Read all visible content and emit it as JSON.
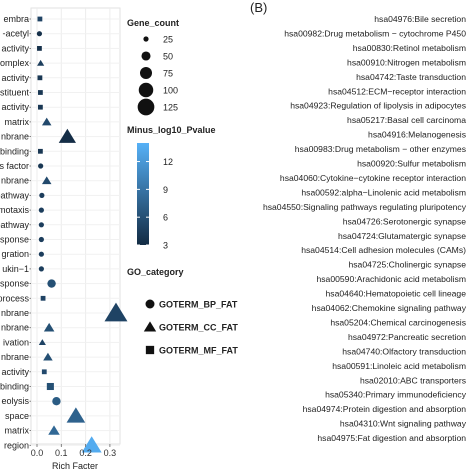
{
  "panel_b_label": "(B)",
  "chart_data": [
    {
      "type": "scatter",
      "xlabel": "Rich Facter",
      "xlim": [
        0,
        0.35
      ],
      "xticks": [
        0.0,
        0.1,
        0.2,
        0.3
      ],
      "xtick_labels": [
        "0.0",
        "0.1",
        "0.2",
        "0.3"
      ],
      "grid": true,
      "categories": [
        "embra",
        "-acetyl",
        "activity",
        "omplex",
        "activity",
        "stituent",
        "activity",
        "matrix",
        "nbrane",
        "binding",
        "s factor",
        "nbrane",
        "pathway",
        "motaxis",
        "pathway",
        "sponse",
        "gration",
        "ukin−1",
        "sponse",
        "process",
        "nbrane",
        "nbrane",
        "ivation",
        "nbrane",
        "activity",
        "binding",
        "eolysis",
        "space",
        "matrix",
        "region"
      ],
      "category_colors": {
        "28": "#e8473f"
      },
      "points": [
        {
          "y": "embra",
          "x": 0.012,
          "size": 25,
          "log_p": 5.0,
          "go": "GOTERM_MF_FAT"
        },
        {
          "y": "-acetyl",
          "x": 0.01,
          "size": 25,
          "log_p": 3.5,
          "go": "GOTERM_BP_FAT"
        },
        {
          "y": "activity",
          "x": 0.01,
          "size": 25,
          "log_p": 3.5,
          "go": "GOTERM_MF_FAT"
        },
        {
          "y": "omplex",
          "x": 0.015,
          "size": 25,
          "log_p": 4.5,
          "go": "GOTERM_CC_FAT"
        },
        {
          "y": "activity",
          "x": 0.012,
          "size": 25,
          "log_p": 4.0,
          "go": "GOTERM_MF_FAT"
        },
        {
          "y": "stituent",
          "x": 0.014,
          "size": 25,
          "log_p": 4.0,
          "go": "GOTERM_MF_FAT"
        },
        {
          "y": "activity",
          "x": 0.014,
          "size": 25,
          "log_p": 4.0,
          "go": "GOTERM_MF_FAT"
        },
        {
          "y": "matrix",
          "x": 0.04,
          "size": 35,
          "log_p": 5.5,
          "go": "GOTERM_CC_FAT"
        },
        {
          "y": "nbrane",
          "x": 0.125,
          "size": 80,
          "log_p": 3.2,
          "go": "GOTERM_CC_FAT"
        },
        {
          "y": "binding",
          "x": 0.014,
          "size": 25,
          "log_p": 4.0,
          "go": "GOTERM_MF_FAT"
        },
        {
          "y": "s factor",
          "x": 0.015,
          "size": 25,
          "log_p": 4.0,
          "go": "GOTERM_BP_FAT"
        },
        {
          "y": "nbrane",
          "x": 0.04,
          "size": 35,
          "log_p": 5.5,
          "go": "GOTERM_CC_FAT"
        },
        {
          "y": "pathway",
          "x": 0.02,
          "size": 25,
          "log_p": 4.5,
          "go": "GOTERM_BP_FAT"
        },
        {
          "y": "motaxis",
          "x": 0.018,
          "size": 25,
          "log_p": 4.5,
          "go": "GOTERM_BP_FAT"
        },
        {
          "y": "pathway",
          "x": 0.018,
          "size": 25,
          "log_p": 4.5,
          "go": "GOTERM_BP_FAT"
        },
        {
          "y": "sponse",
          "x": 0.018,
          "size": 25,
          "log_p": 4.5,
          "go": "GOTERM_BP_FAT"
        },
        {
          "y": "gration",
          "x": 0.018,
          "size": 25,
          "log_p": 4.5,
          "go": "GOTERM_BP_FAT"
        },
        {
          "y": "ukin−1",
          "x": 0.018,
          "size": 25,
          "log_p": 4.5,
          "go": "GOTERM_BP_FAT"
        },
        {
          "y": "sponse",
          "x": 0.06,
          "size": 45,
          "log_p": 6.0,
          "go": "GOTERM_BP_FAT"
        },
        {
          "y": "process",
          "x": 0.025,
          "size": 25,
          "log_p": 5.0,
          "go": "GOTERM_MF_FAT"
        },
        {
          "y": "nbrane",
          "x": 0.325,
          "size": 125,
          "log_p": 5.0,
          "go": "GOTERM_CC_FAT"
        },
        {
          "y": "nbrane",
          "x": 0.05,
          "size": 40,
          "log_p": 6.0,
          "go": "GOTERM_CC_FAT"
        },
        {
          "y": "ivation",
          "x": 0.022,
          "size": 25,
          "log_p": 5.0,
          "go": "GOTERM_CC_FAT"
        },
        {
          "y": "nbrane",
          "x": 0.045,
          "size": 35,
          "log_p": 6.0,
          "go": "GOTERM_CC_FAT"
        },
        {
          "y": "activity",
          "x": 0.03,
          "size": 25,
          "log_p": 5.5,
          "go": "GOTERM_MF_FAT"
        },
        {
          "y": "binding",
          "x": 0.055,
          "size": 40,
          "log_p": 6.0,
          "go": "GOTERM_MF_FAT"
        },
        {
          "y": "eolysis",
          "x": 0.08,
          "size": 45,
          "log_p": 7.0,
          "go": "GOTERM_BP_FAT"
        },
        {
          "y": "space",
          "x": 0.16,
          "size": 90,
          "log_p": 7.5,
          "go": "GOTERM_CC_FAT"
        },
        {
          "y": "matrix",
          "x": 0.07,
          "size": 45,
          "log_p": 8.0,
          "go": "GOTERM_CC_FAT"
        },
        {
          "y": "region",
          "x": 0.225,
          "size": 100,
          "log_p": 13.5,
          "go": "GOTERM_CC_FAT"
        }
      ],
      "legend": {
        "size_title": "Gene_count",
        "size_values": [
          25,
          50,
          75,
          100,
          125
        ],
        "color_title": "Minus_log10_Pvalue",
        "color_ticks": [
          3,
          6,
          9,
          12
        ],
        "color_low": "#132b43",
        "color_high": "#56b1f7",
        "shape_title": "GO_category",
        "shape_items": [
          {
            "label": "GOTERM_BP_FAT",
            "shape": "circle"
          },
          {
            "label": "GOTERM_CC_FAT",
            "shape": "triangle"
          },
          {
            "label": "GOTERM_MF_FAT",
            "shape": "square"
          }
        ]
      }
    },
    {
      "type": "table",
      "items": [
        "hsa04976:Bile secretion",
        "hsa00982:Drug metabolism − cytochrome P450",
        "hsa00830:Retinol metabolism",
        "hsa00910:Nitrogen metabolism",
        "hsa04742:Taste transduction",
        "hsa04512:ECM−receptor interaction",
        "hsa04923:Regulation of lipolysis in adipocytes",
        "hsa05217:Basal cell carcinoma",
        "hsa04916:Melanogenesis",
        "hsa00983:Drug metabolism − other enzymes",
        "hsa00920:Sulfur metabolism",
        "hsa04060:Cytokine−cytokine receptor interaction",
        "hsa00592:alpha−Linolenic acid metabolism",
        "hsa04550:Signaling pathways regulating pluripotency",
        "hsa04726:Serotonergic synapse",
        "hsa04724:Glutamatergic synapse",
        "hsa04514:Cell adhesion molecules (CAMs)",
        "hsa04725:Cholinergic synapse",
        "hsa00590:Arachidonic acid metabolism",
        "hsa04640:Hematopoietic cell lineage",
        "hsa04062:Chemokine signaling pathway",
        "hsa05204:Chemical carcinogenesis",
        "hsa04972:Pancreatic secretion",
        "hsa04740:Olfactory transduction",
        "hsa00591:Linoleic acid metabolism",
        "hsa02010:ABC transporters",
        "hsa05340:Primary immunodeficiency",
        "hsa04974:Protein digestion and absorption",
        "hsa04310:Wnt signaling pathway",
        "hsa04975:Fat digestion and absorption"
      ],
      "item_colors": {
        "28": "#e8473f"
      },
      "default_color": "#222222"
    }
  ]
}
